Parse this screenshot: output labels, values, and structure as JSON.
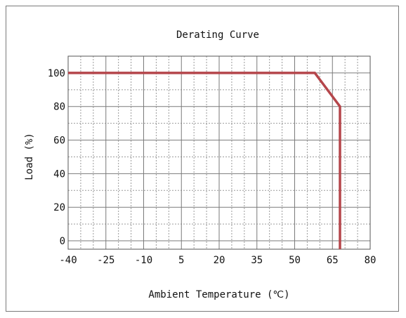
{
  "chart_data": {
    "type": "line",
    "title": "Derating Curve",
    "xlabel": "Ambient Temperature (℃)",
    "ylabel": "Load (%)",
    "xlim": [
      -40,
      80
    ],
    "ylim": [
      -5,
      110
    ],
    "xticks": [
      "-40",
      "-25",
      "-10",
      "5",
      "20",
      "35",
      "50",
      "65",
      "80"
    ],
    "xtick_values": [
      -40,
      -25,
      -10,
      5,
      20,
      35,
      50,
      65,
      80
    ],
    "yticks": [
      "0",
      "20",
      "40",
      "60",
      "80",
      "100"
    ],
    "ytick_values": [
      0,
      20,
      40,
      60,
      80,
      100
    ],
    "grid": true,
    "series": [
      {
        "color": "#b5464b",
        "points": [
          [
            -40,
            100
          ],
          [
            58,
            100
          ],
          [
            68,
            80
          ],
          [
            68,
            -5
          ]
        ]
      }
    ]
  }
}
